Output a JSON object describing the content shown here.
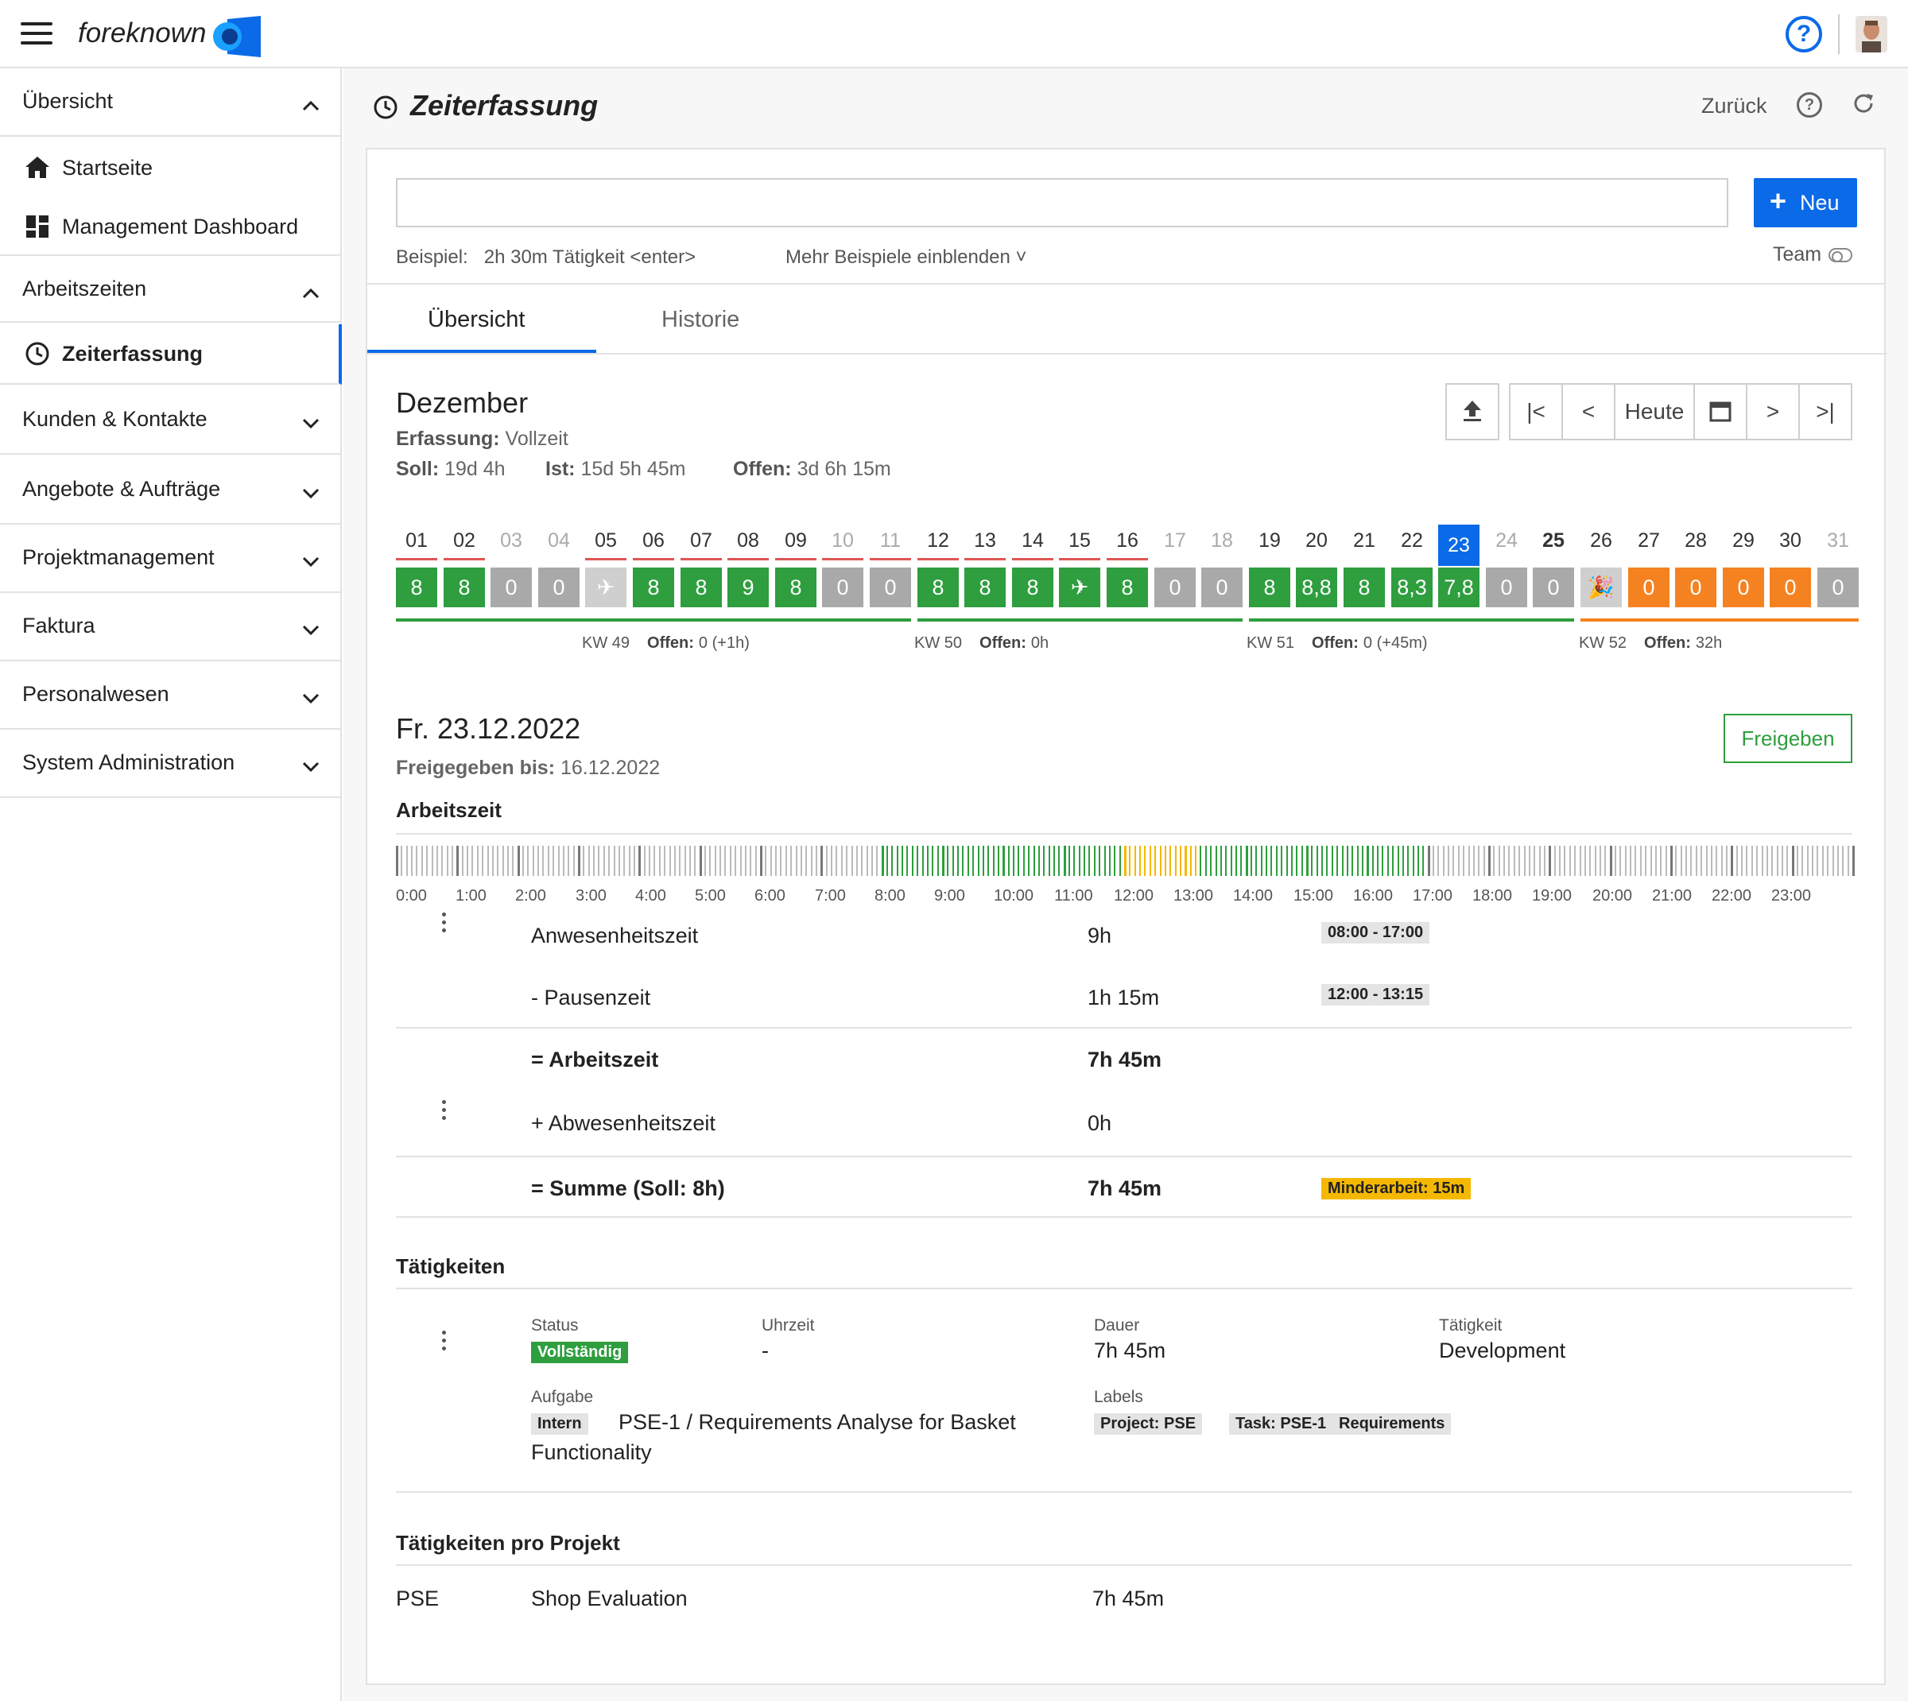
{
  "app": {
    "logo": "foreknown"
  },
  "sidebar": {
    "uebersicht": "Übersicht",
    "startseite": "Startseite",
    "dashboard": "Management Dashboard",
    "arbeitszeiten": "Arbeitszeiten",
    "zeiterfassung": "Zeiterfassung",
    "kunden": "Kunden & Kontakte",
    "angebote": "Angebote & Aufträge",
    "projekt": "Projektmanagement",
    "faktura": "Faktura",
    "personal": "Personalwesen",
    "sysadmin": "System Administration"
  },
  "page": {
    "title": "Zeiterfassung",
    "back": "Zurück",
    "help": "?"
  },
  "entry": {
    "input_value": "",
    "new_button": "Neu",
    "example_label": "Beispiel:",
    "example_text": "2h 30m Tätigkeit <enter>",
    "more_examples": "Mehr Beispiele einblenden ˅",
    "team": "Team"
  },
  "tabs": [
    "Übersicht",
    "Historie"
  ],
  "month": {
    "name": "Dezember",
    "erfassung_label": "Erfassung:",
    "erfassung_value": "Vollzeit",
    "soll_label": "Soll:",
    "soll_value": "19d 4h",
    "ist_label": "Ist:",
    "ist_value": "15d 5h 45m",
    "offen_label": "Offen:",
    "offen_value": "3d 6h 15m",
    "today_button": "Heute"
  },
  "days": [
    {
      "n": "01",
      "v": "8",
      "k": "g",
      "line": "r",
      "num": "n"
    },
    {
      "n": "02",
      "v": "8",
      "k": "g",
      "line": "r",
      "num": "n"
    },
    {
      "n": "03",
      "v": "0",
      "k": "x",
      "line": "",
      "num": "m"
    },
    {
      "n": "04",
      "v": "0",
      "k": "x",
      "line": "",
      "num": "m"
    },
    {
      "n": "05",
      "v": "✈",
      "k": "t",
      "line": "r",
      "num": "n"
    },
    {
      "n": "06",
      "v": "8",
      "k": "g",
      "line": "r",
      "num": "n"
    },
    {
      "n": "07",
      "v": "8",
      "k": "g",
      "line": "r",
      "num": "n"
    },
    {
      "n": "08",
      "v": "9",
      "k": "g",
      "line": "r",
      "num": "n"
    },
    {
      "n": "09",
      "v": "8",
      "k": "g",
      "line": "r",
      "num": "n"
    },
    {
      "n": "10",
      "v": "0",
      "k": "x",
      "line": "r",
      "num": "m"
    },
    {
      "n": "11",
      "v": "0",
      "k": "x",
      "line": "r",
      "num": "m"
    },
    {
      "n": "12",
      "v": "8",
      "k": "g",
      "line": "r",
      "num": "n"
    },
    {
      "n": "13",
      "v": "8",
      "k": "g",
      "line": "r",
      "num": "n"
    },
    {
      "n": "14",
      "v": "8",
      "k": "g",
      "line": "r",
      "num": "n"
    },
    {
      "n": "15",
      "v": "✈",
      "k": "g",
      "line": "r",
      "num": "n"
    },
    {
      "n": "16",
      "v": "8",
      "k": "g",
      "line": "r",
      "num": "n"
    },
    {
      "n": "17",
      "v": "0",
      "k": "x",
      "line": "",
      "num": "m"
    },
    {
      "n": "18",
      "v": "0",
      "k": "x",
      "line": "",
      "num": "m"
    },
    {
      "n": "19",
      "v": "8",
      "k": "g",
      "line": "",
      "num": "n"
    },
    {
      "n": "20",
      "v": "8,8",
      "k": "g",
      "line": "",
      "num": "n"
    },
    {
      "n": "21",
      "v": "8",
      "k": "g",
      "line": "",
      "num": "n"
    },
    {
      "n": "22",
      "v": "8,3",
      "k": "g",
      "line": "",
      "num": "n"
    },
    {
      "n": "23",
      "v": "7,8",
      "k": "g",
      "line": "",
      "num": "sel"
    },
    {
      "n": "24",
      "v": "0",
      "k": "x",
      "line": "",
      "num": "m"
    },
    {
      "n": "25",
      "v": "0",
      "k": "x",
      "line": "",
      "num": "b"
    },
    {
      "n": "26",
      "v": "🎉",
      "k": "t",
      "line": "",
      "num": "n"
    },
    {
      "n": "27",
      "v": "0",
      "k": "o",
      "line": "",
      "num": "n"
    },
    {
      "n": "28",
      "v": "0",
      "k": "o",
      "line": "",
      "num": "n"
    },
    {
      "n": "29",
      "v": "0",
      "k": "o",
      "line": "",
      "num": "n"
    },
    {
      "n": "30",
      "v": "0",
      "k": "o",
      "line": "",
      "num": "n"
    },
    {
      "n": "31",
      "v": "0",
      "k": "x",
      "line": "",
      "num": "m"
    }
  ],
  "weeks": [
    {
      "kw": "KW 49",
      "offen_label": "Offen:",
      "offen": "0 (+1h)",
      "color": "green"
    },
    {
      "kw": "KW 50",
      "offen_label": "Offen:",
      "offen": "0h",
      "color": "green"
    },
    {
      "kw": "KW 51",
      "offen_label": "Offen:",
      "offen": "0 (+45m)",
      "color": "green"
    },
    {
      "kw": "KW 52",
      "offen_label": "Offen:",
      "offen": "32h",
      "color": "orange"
    }
  ],
  "day_detail": {
    "date": "Fr. 23.12.2022",
    "freigegeben_label": "Freigegeben bis:",
    "freigegeben_value": "16.12.2022",
    "release_button": "Freigeben",
    "arbeitszeit_heading": "Arbeitszeit",
    "hours": [
      "0:00",
      "1:00",
      "2:00",
      "3:00",
      "4:00",
      "5:00",
      "6:00",
      "7:00",
      "8:00",
      "9:00",
      "10:00",
      "11:00",
      "12:00",
      "13:00",
      "14:00",
      "15:00",
      "16:00",
      "17:00",
      "18:00",
      "19:00",
      "20:00",
      "21:00",
      "22:00",
      "23:00"
    ],
    "rows": {
      "anwesenheit_label": "Anwesenheitszeit",
      "anwesenheit_value": "9h",
      "anwesenheit_tag": "08:00 - 17:00",
      "pause_label": "- Pausenzeit",
      "pause_value": "1h 15m",
      "pause_tag": "12:00 - 13:15",
      "arbeitszeit_label": "= Arbeitszeit",
      "arbeitszeit_value": "7h 45m",
      "abwesenheit_label": "+ Abwesenheitszeit",
      "abwesenheit_value": "0h",
      "summe_label": "= Summe (Soll: 8h)",
      "summe_value": "7h 45m",
      "summe_tag": "Minderarbeit: 15m"
    }
  },
  "activities": {
    "heading": "Tätigkeiten",
    "status_label": "Status",
    "status_value": "Vollständig",
    "uhrzeit_label": "Uhrzeit",
    "uhrzeit_value": "-",
    "dauer_label": "Dauer",
    "dauer_value": "7h 45m",
    "taetigkeit_label": "Tätigkeit",
    "taetigkeit_value": "Development",
    "aufgabe_label": "Aufgabe",
    "aufgabe_tag": "Intern",
    "aufgabe_line1": "PSE-1 / Requirements Analyse for Basket",
    "aufgabe_line2": "Functionality",
    "labels_label": "Labels",
    "labels": [
      "Project: PSE",
      "Task: PSE-1",
      "Requirements"
    ]
  },
  "per_project": {
    "heading": "Tätigkeiten pro Projekt",
    "code": "PSE",
    "name": "Shop Evaluation",
    "value": "7h 45m"
  },
  "colors": {
    "accent": "#0b6ae8",
    "green": "#2e9e3e",
    "orange": "#f58220",
    "gray": "#a9a9a9",
    "red": "#e05555",
    "warn": "#f5b800"
  }
}
